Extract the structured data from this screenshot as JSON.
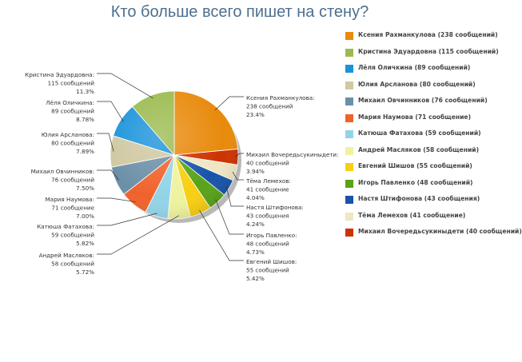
{
  "chart_data": {
    "type": "pie",
    "title": "Кто больше всего пишет на стену?",
    "slices": [
      {
        "name": "Ксения Рахманкулова",
        "value": 238,
        "count_label": "238 сообщений",
        "percent_label": "23.4%",
        "legend": "Ксения Рахманкулова (238 сообщений)",
        "color": "#e88a0c"
      },
      {
        "name": "Михаил Вочередьсукиныдети",
        "value": 40,
        "count_label": "40 сообщений",
        "percent_label": "3.94%",
        "legend": "Михаил Вочередьсукиныдети (40 сообщений)",
        "color": "#cc3300"
      },
      {
        "name": "Тёма Лемехов",
        "value": 41,
        "count_label": "41 сообщение",
        "percent_label": "4.04%",
        "legend": "Тёма Лемехов (41 сообщение)",
        "color": "#efe6c4"
      },
      {
        "name": "Настя Штифонова",
        "value": 43,
        "count_label": "43 сообщения",
        "percent_label": "4.24%",
        "legend": "Настя Штифонова (43 сообщения)",
        "color": "#1854a8"
      },
      {
        "name": "Игорь Павленко",
        "value": 48,
        "count_label": "48 сообщений",
        "percent_label": "4.73%",
        "legend": "Игорь Павленко (48 сообщений)",
        "color": "#59a317"
      },
      {
        "name": "Евгений Шишов",
        "value": 55,
        "count_label": "55 сообщений",
        "percent_label": "5.42%",
        "legend": "Евгений Шишов (55 сообщений)",
        "color": "#f7cf12"
      },
      {
        "name": "Андрей Масляков",
        "value": 58,
        "count_label": "58 сообщений",
        "percent_label": "5.72%",
        "legend": "Андрей Масляков (58 сообщений)",
        "color": "#eef39e"
      },
      {
        "name": "Катюша Фатахова",
        "value": 59,
        "count_label": "59 сообщений",
        "percent_label": "5.82%",
        "legend": "Катюша Фатахова (59 сообщений)",
        "color": "#92d3e8"
      },
      {
        "name": "Мария Наумова",
        "value": 71,
        "count_label": "71 сообщение",
        "percent_label": "7.00%",
        "legend": "Мария Наумова (71 сообщение)",
        "color": "#f0622c"
      },
      {
        "name": "Михаил Овчинников",
        "value": 76,
        "count_label": "76 сообщений",
        "percent_label": "7.50%",
        "legend": "Михаил Овчинников (76 сообщений)",
        "color": "#6b8fa8"
      },
      {
        "name": "Юлия Арсланова",
        "value": 80,
        "count_label": "80 сообщений",
        "percent_label": "7.89%",
        "legend": "Юлия Арсланова (80 сообщений)",
        "color": "#cfc8a2"
      },
      {
        "name": "Лёля Оличкина",
        "value": 89,
        "count_label": "89 сообщений",
        "percent_label": "8.78%",
        "legend": "Лёля Оличкина (89 сообщений)",
        "color": "#1b93da"
      },
      {
        "name": "Кристина Эдуардовна",
        "value": 115,
        "count_label": "115 сообщений",
        "percent_label": "11.3%",
        "legend": "Кристина Эдуардовна (115 сообщений)",
        "color": "#9bbb4f"
      }
    ],
    "legend_order": [
      0,
      12,
      11,
      10,
      9,
      8,
      7,
      6,
      5,
      4,
      3,
      2,
      1
    ],
    "legend_position": "right"
  }
}
